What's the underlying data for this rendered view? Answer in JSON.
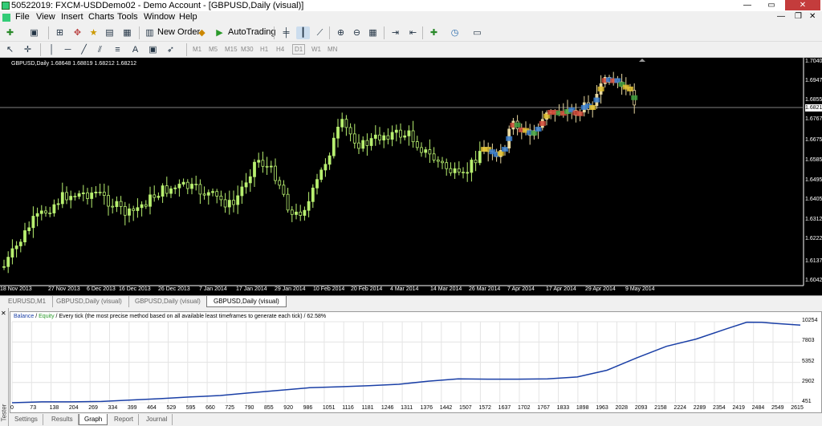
{
  "window": {
    "title": "50522019: FXCM-USDDemo02 - Demo Account - [GBPUSD,Daily (visual)]",
    "minimize": "—",
    "maximize": "▭",
    "close": "✕"
  },
  "menu": [
    "File",
    "View",
    "Insert",
    "Charts",
    "Tools",
    "Window",
    "Help"
  ],
  "toolbar": {
    "new_order": "New Order",
    "autotrading": "AutoTrading"
  },
  "drawing_tools": {
    "text_tool": "A"
  },
  "timeframes": [
    "M1",
    "M5",
    "M15",
    "M30",
    "H1",
    "H4",
    "D1",
    "W1",
    "MN"
  ],
  "chart": {
    "info": "GBPUSD,Daily  1.68648 1.68819 1.68212 1.68212",
    "current_price": "1.6821",
    "y_labels": [
      "1.7040",
      "1.6947",
      "1.6855",
      "1.6767",
      "1.6675",
      "1.6585",
      "1.6495",
      "1.6405",
      "1.6312",
      "1.6222",
      "1.6137",
      "1.6042"
    ],
    "x_labels": [
      "18 Nov 2013",
      "27 Nov 2013",
      "6 Dec 2013",
      "16 Dec 2013",
      "26 Dec 2013",
      "7 Jan 2014",
      "17 Jan 2014",
      "29 Jan 2014",
      "10 Feb 2014",
      "20 Feb 2014",
      "4 Mar 2014",
      "14 Mar 2014",
      "26 Mar 2014",
      "7 Apr 2014",
      "17 Apr 2014",
      "29 Apr 2014",
      "9 May 2014"
    ],
    "colors": {
      "background": "#000000",
      "candle": "#b8f070",
      "price_line": "#808080"
    }
  },
  "chart_tabs": [
    "EURUSD,M1",
    "GBPUSD,Daily (visual)",
    "GBPUSD,Daily (visual)",
    "GBPUSD,Daily (visual)"
  ],
  "tester": {
    "side_label": "Tester",
    "header": {
      "balance": "Balance",
      "sep": " / ",
      "equity": "Equity",
      "rest": " / Every tick (the most precise method based on all available least timeframes to generate each tick) / 62.58%"
    },
    "y_labels": [
      "10254",
      "7803",
      "5352",
      "2902",
      "451"
    ],
    "x_labels": [
      "0",
      "73",
      "138",
      "204",
      "269",
      "334",
      "399",
      "464",
      "529",
      "595",
      "660",
      "725",
      "790",
      "855",
      "920",
      "986",
      "1051",
      "1116",
      "1181",
      "1246",
      "1311",
      "1376",
      "1442",
      "1507",
      "1572",
      "1637",
      "1702",
      "1767",
      "1833",
      "1898",
      "1963",
      "2028",
      "2093",
      "2158",
      "2224",
      "2289",
      "2354",
      "2419",
      "2484",
      "2549",
      "2615"
    ],
    "tabs": [
      "Settings",
      "Results",
      "Graph",
      "Report",
      "Journal"
    ],
    "active_tab": "Graph",
    "colors": {
      "balance_line": "#1a3fa6",
      "balance_label": "#1a3fa6",
      "equity_label": "#2a9a2a"
    }
  },
  "chart_data": {
    "type": "line",
    "title": "",
    "xlabel": "",
    "ylabel": "",
    "ylim": [
      451,
      10254
    ],
    "xlim": [
      0,
      2650
    ],
    "series": [
      {
        "name": "Balance",
        "x": [
          0,
          100,
          200,
          300,
          400,
          500,
          600,
          700,
          800,
          900,
          1000,
          1100,
          1200,
          1300,
          1400,
          1500,
          1600,
          1700,
          1800,
          1900,
          2000,
          2100,
          2200,
          2300,
          2400,
          2470,
          2520,
          2560,
          2600,
          2650
        ],
        "values": [
          451,
          560,
          560,
          610,
          780,
          950,
          1150,
          1320,
          1650,
          1960,
          2270,
          2380,
          2510,
          2680,
          3060,
          3330,
          3300,
          3300,
          3330,
          3570,
          4380,
          5880,
          7270,
          8160,
          9370,
          10200,
          10180,
          10060,
          9960,
          9850
        ]
      }
    ]
  }
}
